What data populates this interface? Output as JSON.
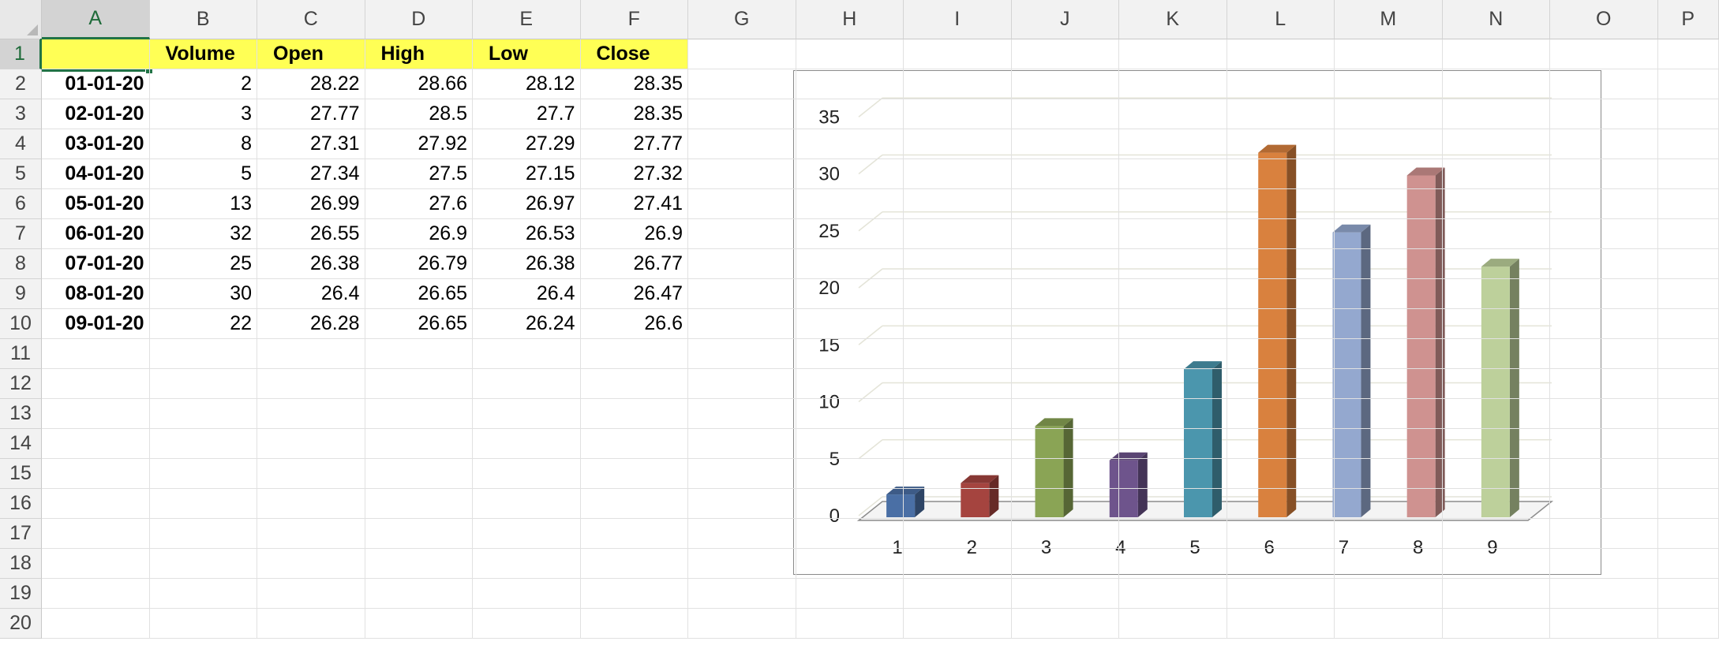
{
  "sheet": {
    "columns": [
      "A",
      "B",
      "C",
      "D",
      "E",
      "F",
      "G",
      "H",
      "I",
      "J",
      "K",
      "L",
      "M",
      "N",
      "O",
      "P"
    ],
    "active_column": "A",
    "active_row": 1,
    "rows": [
      "1",
      "2",
      "3",
      "4",
      "5",
      "6",
      "7",
      "8",
      "9",
      "10",
      "11",
      "12",
      "13",
      "14",
      "15",
      "16",
      "17",
      "18",
      "19",
      "20"
    ],
    "header_fill": "#ffff55",
    "headers": {
      "A": "",
      "B": "Volume",
      "C": "Open",
      "D": "High",
      "E": "Low",
      "F": "Close"
    },
    "data_rows": [
      {
        "date": "01-01-20",
        "volume": "2",
        "open": "28.22",
        "high": "28.66",
        "low": "28.12",
        "close": "28.35"
      },
      {
        "date": "02-01-20",
        "volume": "3",
        "open": "27.77",
        "high": "28.5",
        "low": "27.7",
        "close": "28.35"
      },
      {
        "date": "03-01-20",
        "volume": "8",
        "open": "27.31",
        "high": "27.92",
        "low": "27.29",
        "close": "27.77"
      },
      {
        "date": "04-01-20",
        "volume": "5",
        "open": "27.34",
        "high": "27.5",
        "low": "27.15",
        "close": "27.32"
      },
      {
        "date": "05-01-20",
        "volume": "13",
        "open": "26.99",
        "high": "27.6",
        "low": "26.97",
        "close": "27.41"
      },
      {
        "date": "06-01-20",
        "volume": "32",
        "open": "26.55",
        "high": "26.9",
        "low": "26.53",
        "close": "26.9"
      },
      {
        "date": "07-01-20",
        "volume": "25",
        "open": "26.38",
        "high": "26.79",
        "low": "26.38",
        "close": "26.77"
      },
      {
        "date": "08-01-20",
        "volume": "30",
        "open": "26.4",
        "high": "26.65",
        "low": "26.4",
        "close": "26.47"
      },
      {
        "date": "09-01-20",
        "volume": "22",
        "open": "26.28",
        "high": "26.65",
        "low": "26.24",
        "close": "26.6"
      }
    ]
  },
  "chart_data": {
    "type": "bar",
    "style": "3d-column",
    "title": "",
    "xlabel": "",
    "ylabel": "",
    "categories": [
      "1",
      "2",
      "3",
      "4",
      "5",
      "6",
      "7",
      "8",
      "9"
    ],
    "values": [
      2,
      3,
      8,
      5,
      13,
      32,
      25,
      30,
      22
    ],
    "ylim": [
      0,
      35
    ],
    "yticks": [
      0,
      5,
      10,
      15,
      20,
      25,
      30,
      35
    ],
    "grid": true,
    "legend": "none",
    "bar_colors": [
      "#4a6fa5",
      "#a5443f",
      "#8aa455",
      "#6e548c",
      "#4b96ad",
      "#d9813e",
      "#94a8cf",
      "#cf9290",
      "#bdd09b"
    ]
  }
}
